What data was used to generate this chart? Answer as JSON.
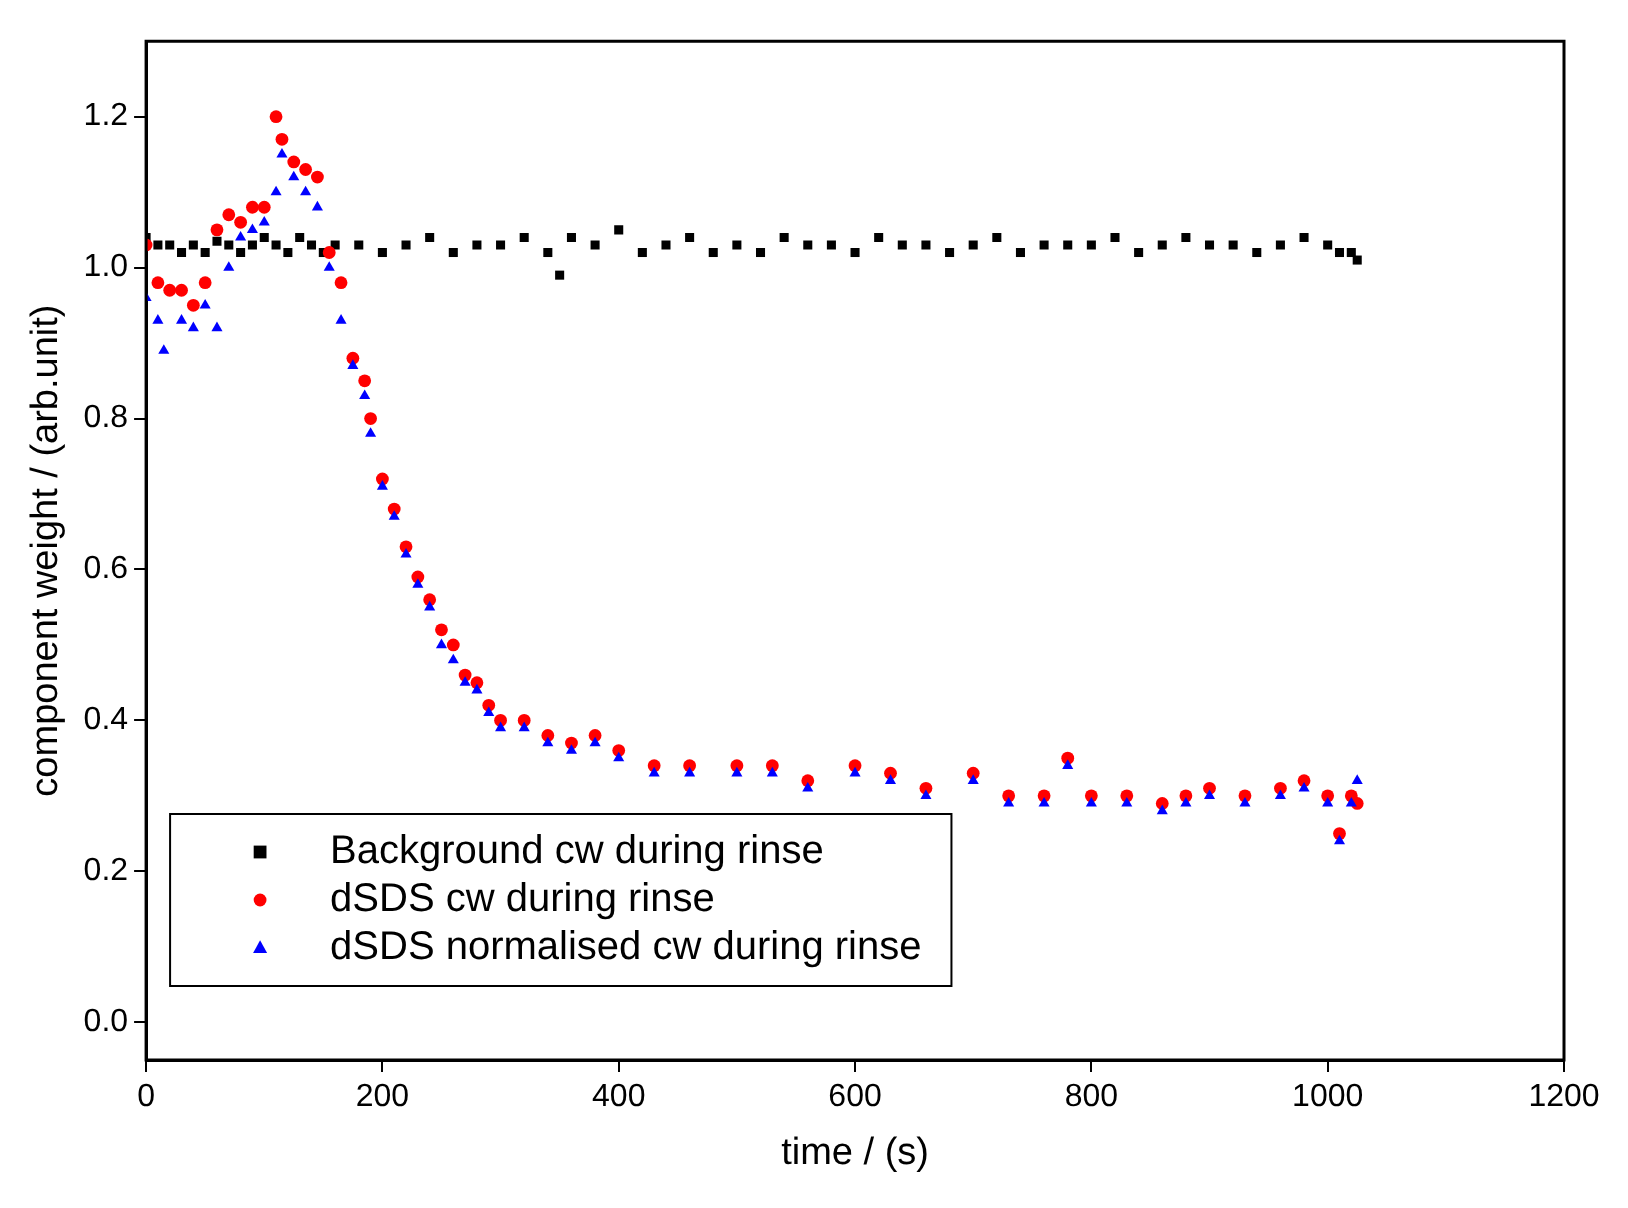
{
  "chart_data": {
    "type": "scatter",
    "xlabel": "time / (s)",
    "ylabel": "component weight / (arb.unit)",
    "xlim": [
      0,
      1200
    ],
    "ylim": [
      -0.05,
      1.3
    ],
    "xticks": [
      0,
      200,
      400,
      600,
      800,
      1000,
      1200
    ],
    "yticks": [
      {
        "value": 0,
        "label": "0.0"
      },
      {
        "value": 0.2,
        "label": "0.2"
      },
      {
        "value": 0.4,
        "label": "0.4"
      },
      {
        "value": 0.6,
        "label": "0.6"
      },
      {
        "value": 0.8,
        "label": "0.8"
      },
      {
        "value": 1,
        "label": "1.0"
      },
      {
        "value": 1.2,
        "label": "1.2"
      }
    ],
    "legend": "bottom left",
    "grid": false,
    "series": [
      {
        "name": "Background cw during rinse",
        "color": "#000000",
        "marker": "square",
        "x": [
          0,
          10,
          20,
          30,
          40,
          50,
          60,
          70,
          80,
          90,
          100,
          110,
          120,
          130,
          140,
          150,
          160,
          180,
          200,
          220,
          240,
          260,
          280,
          300,
          320,
          340,
          350,
          360,
          380,
          400,
          420,
          440,
          460,
          480,
          500,
          520,
          540,
          560,
          580,
          600,
          620,
          640,
          660,
          680,
          700,
          720,
          740,
          760,
          780,
          800,
          820,
          840,
          860,
          880,
          900,
          920,
          940,
          960,
          980,
          1000,
          1010,
          1020,
          1025
        ],
        "values": [
          1.04,
          1.03,
          1.03,
          1.02,
          1.03,
          1.02,
          1.035,
          1.03,
          1.02,
          1.03,
          1.04,
          1.03,
          1.02,
          1.04,
          1.03,
          1.02,
          1.03,
          1.03,
          1.02,
          1.03,
          1.04,
          1.02,
          1.03,
          1.03,
          1.04,
          1.02,
          0.99,
          1.04,
          1.03,
          1.05,
          1.02,
          1.03,
          1.04,
          1.02,
          1.03,
          1.02,
          1.04,
          1.03,
          1.03,
          1.02,
          1.04,
          1.03,
          1.03,
          1.02,
          1.03,
          1.04,
          1.02,
          1.03,
          1.03,
          1.03,
          1.04,
          1.02,
          1.03,
          1.04,
          1.03,
          1.03,
          1.02,
          1.03,
          1.04,
          1.03,
          1.02,
          1.02,
          1.01
        ]
      },
      {
        "name": "dSDS cw during rinse",
        "color": "#ff0000",
        "marker": "circle",
        "x": [
          0,
          10,
          20,
          30,
          40,
          50,
          60,
          70,
          80,
          90,
          100,
          110,
          115,
          125,
          135,
          145,
          155,
          165,
          175,
          185,
          190,
          200,
          210,
          220,
          230,
          240,
          250,
          260,
          270,
          280,
          290,
          300,
          320,
          340,
          360,
          380,
          400,
          430,
          460,
          500,
          530,
          560,
          600,
          630,
          660,
          700,
          730,
          760,
          780,
          800,
          830,
          860,
          880,
          900,
          930,
          960,
          980,
          1000,
          1010,
          1020,
          1025
        ],
        "values": [
          1.03,
          0.98,
          0.97,
          0.97,
          0.95,
          0.98,
          1.05,
          1.07,
          1.06,
          1.08,
          1.08,
          1.2,
          1.17,
          1.14,
          1.13,
          1.12,
          1.02,
          0.98,
          0.88,
          0.85,
          0.8,
          0.72,
          0.68,
          0.63,
          0.59,
          0.56,
          0.52,
          0.5,
          0.46,
          0.45,
          0.42,
          0.4,
          0.4,
          0.38,
          0.37,
          0.38,
          0.36,
          0.34,
          0.34,
          0.34,
          0.34,
          0.32,
          0.34,
          0.33,
          0.31,
          0.33,
          0.3,
          0.3,
          0.35,
          0.3,
          0.3,
          0.29,
          0.3,
          0.31,
          0.3,
          0.31,
          0.32,
          0.3,
          0.25,
          0.3,
          0.29
        ]
      },
      {
        "name": "dSDS normalised cw during rinse",
        "color": "#0000ff",
        "marker": "triangle",
        "x": [
          0,
          10,
          15,
          30,
          40,
          50,
          60,
          70,
          80,
          90,
          100,
          110,
          115,
          125,
          135,
          145,
          155,
          165,
          175,
          185,
          190,
          200,
          210,
          220,
          230,
          240,
          250,
          260,
          270,
          280,
          290,
          300,
          320,
          340,
          360,
          380,
          400,
          430,
          460,
          500,
          530,
          560,
          600,
          630,
          660,
          700,
          730,
          760,
          780,
          800,
          830,
          860,
          880,
          900,
          930,
          960,
          980,
          1000,
          1010,
          1020,
          1025
        ],
        "values": [
          0.96,
          0.93,
          0.89,
          0.93,
          0.92,
          0.95,
          0.92,
          1.0,
          1.04,
          1.05,
          1.06,
          1.1,
          1.15,
          1.12,
          1.1,
          1.08,
          1.0,
          0.93,
          0.87,
          0.83,
          0.78,
          0.71,
          0.67,
          0.62,
          0.58,
          0.55,
          0.5,
          0.48,
          0.45,
          0.44,
          0.41,
          0.39,
          0.39,
          0.37,
          0.36,
          0.37,
          0.35,
          0.33,
          0.33,
          0.33,
          0.33,
          0.31,
          0.33,
          0.32,
          0.3,
          0.32,
          0.29,
          0.29,
          0.34,
          0.29,
          0.29,
          0.28,
          0.29,
          0.3,
          0.29,
          0.3,
          0.31,
          0.29,
          0.24,
          0.29,
          0.32
        ]
      }
    ]
  }
}
